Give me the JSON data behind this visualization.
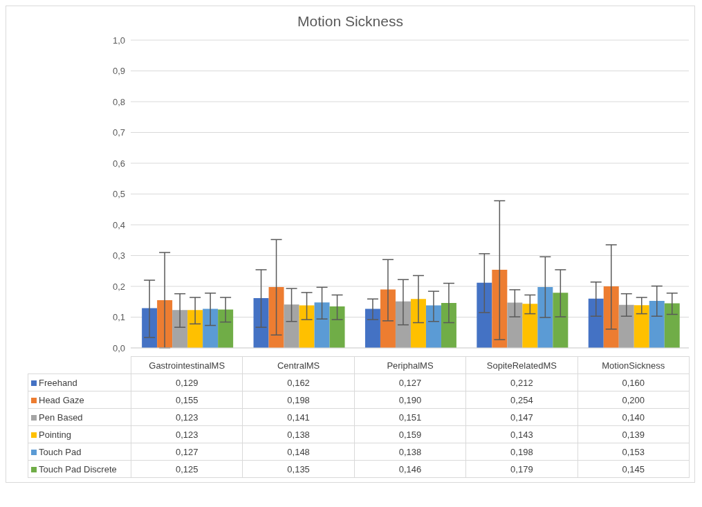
{
  "chart_data": {
    "type": "bar",
    "title": "Motion Sickness",
    "categories": [
      "GastrointestinalMS",
      "CentralMS",
      "PeriphalMS",
      "SopiteRelatedMS",
      "MotionSickness"
    ],
    "series": [
      {
        "name": "Freehand",
        "color": "#4472c4",
        "values": [
          0.129,
          0.162,
          0.127,
          0.212,
          0.16
        ],
        "value_labels": [
          "0,129",
          "0,162",
          "0,127",
          "0,212",
          "0,160"
        ],
        "errors": [
          [
            0.034,
            0.22
          ],
          [
            0.067,
            0.254
          ],
          [
            0.092,
            0.159
          ],
          [
            0.115,
            0.306
          ],
          [
            0.103,
            0.214
          ]
        ]
      },
      {
        "name": "Head Gaze",
        "color": "#ed7d31",
        "values": [
          0.155,
          0.198,
          0.19,
          0.254,
          0.2
        ],
        "value_labels": [
          "0,155",
          "0,198",
          "0,190",
          "0,254",
          "0,200"
        ],
        "errors": [
          [
            0.0,
            0.31
          ],
          [
            0.042,
            0.352
          ],
          [
            0.088,
            0.287
          ],
          [
            0.027,
            0.478
          ],
          [
            0.061,
            0.335
          ]
        ]
      },
      {
        "name": "Pen Based",
        "color": "#a5a5a5",
        "values": [
          0.123,
          0.141,
          0.151,
          0.147,
          0.14
        ],
        "value_labels": [
          "0,123",
          "0,141",
          "0,151",
          "0,147",
          "0,140"
        ],
        "errors": [
          [
            0.067,
            0.176
          ],
          [
            0.086,
            0.193
          ],
          [
            0.075,
            0.222
          ],
          [
            0.101,
            0.189
          ],
          [
            0.103,
            0.176
          ]
        ]
      },
      {
        "name": "Pointing",
        "color": "#ffc000",
        "values": [
          0.123,
          0.138,
          0.159,
          0.143,
          0.139
        ],
        "value_labels": [
          "0,123",
          "0,138",
          "0,159",
          "0,143",
          "0,139"
        ],
        "errors": [
          [
            0.078,
            0.164
          ],
          [
            0.092,
            0.18
          ],
          [
            0.082,
            0.235
          ],
          [
            0.111,
            0.172
          ],
          [
            0.111,
            0.164
          ]
        ]
      },
      {
        "name": "Touch Pad",
        "color": "#5b9bd5",
        "values": [
          0.127,
          0.148,
          0.138,
          0.198,
          0.153
        ],
        "value_labels": [
          "0,127",
          "0,148",
          "0,138",
          "0,198",
          "0,153"
        ],
        "errors": [
          [
            0.073,
            0.178
          ],
          [
            0.094,
            0.197
          ],
          [
            0.086,
            0.184
          ],
          [
            0.099,
            0.296
          ],
          [
            0.103,
            0.201
          ]
        ]
      },
      {
        "name": "Touch Pad Discrete",
        "color": "#70ad47",
        "values": [
          0.125,
          0.135,
          0.146,
          0.179,
          0.145
        ],
        "value_labels": [
          "0,125",
          "0,135",
          "0,146",
          "0,179",
          "0,145"
        ],
        "errors": [
          [
            0.084,
            0.164
          ],
          [
            0.092,
            0.172
          ],
          [
            0.082,
            0.21
          ],
          [
            0.101,
            0.254
          ],
          [
            0.109,
            0.178
          ]
        ]
      }
    ],
    "ylim": [
      0,
      1
    ],
    "yticks": [
      {
        "value": 0,
        "label": "0,0"
      },
      {
        "value": 0.1,
        "label": "0,1"
      },
      {
        "value": 0.2,
        "label": "0,2"
      },
      {
        "value": 0.3,
        "label": "0,3"
      },
      {
        "value": 0.4,
        "label": "0,4"
      },
      {
        "value": 0.5,
        "label": "0,5"
      },
      {
        "value": 0.6,
        "label": "0,6"
      },
      {
        "value": 0.7,
        "label": "0,7"
      },
      {
        "value": 0.8,
        "label": "0,8"
      },
      {
        "value": 0.9,
        "label": "0,9"
      },
      {
        "value": 1,
        "label": "1,0"
      }
    ],
    "grid": "y",
    "legend": "bottom"
  }
}
